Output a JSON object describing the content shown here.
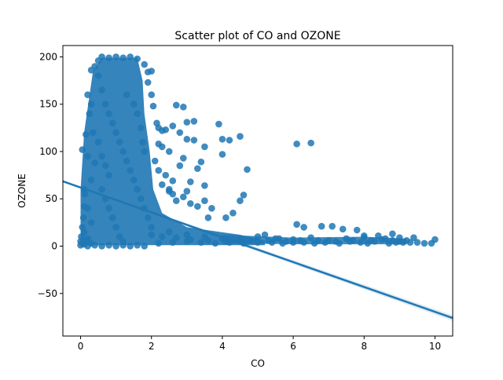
{
  "chart_data": {
    "type": "scatter",
    "title": "Scatter plot of CO and OZONE",
    "xlabel": "CO",
    "ylabel": "OZONE",
    "xlim": [
      -0.5,
      10.5
    ],
    "ylim": [
      -95,
      212
    ],
    "xticks": [
      0,
      2,
      4,
      6,
      8,
      10
    ],
    "yticks": [
      -50,
      0,
      50,
      100,
      150,
      200
    ],
    "grid": false,
    "legend": "none",
    "marker_color": "#1f77b4",
    "series": [
      {
        "points": [
          [
            0.2,
            160
          ],
          [
            0.15,
            118
          ],
          [
            0.05,
            102
          ],
          [
            0.3,
            186
          ],
          [
            0.4,
            190
          ],
          [
            0.5,
            196
          ],
          [
            0.6,
            200
          ],
          [
            0.8,
            199
          ],
          [
            1.0,
            200
          ],
          [
            1.2,
            199
          ],
          [
            1.4,
            200
          ],
          [
            1.6,
            198
          ],
          [
            1.8,
            192
          ],
          [
            1.9,
            184
          ],
          [
            2.0,
            185
          ],
          [
            1.9,
            173
          ],
          [
            0.3,
            150
          ],
          [
            0.25,
            140
          ],
          [
            0.35,
            120
          ],
          [
            0.2,
            95
          ],
          [
            0.4,
            88
          ],
          [
            0.3,
            70
          ],
          [
            0.1,
            60
          ],
          [
            0.2,
            40
          ],
          [
            0.3,
            25
          ],
          [
            0.1,
            15
          ],
          [
            0.2,
            8
          ],
          [
            0.3,
            3
          ],
          [
            0.5,
            180
          ],
          [
            0.6,
            165
          ],
          [
            0.7,
            150
          ],
          [
            0.8,
            140
          ],
          [
            0.9,
            130
          ],
          [
            1.0,
            120
          ],
          [
            1.1,
            110
          ],
          [
            1.2,
            100
          ],
          [
            1.3,
            90
          ],
          [
            1.4,
            80
          ],
          [
            1.5,
            70
          ],
          [
            0.6,
            60
          ],
          [
            0.7,
            50
          ],
          [
            0.8,
            40
          ],
          [
            0.9,
            30
          ],
          [
            1.0,
            20
          ],
          [
            1.1,
            10
          ],
          [
            1.2,
            5
          ],
          [
            0.5,
            110
          ],
          [
            0.6,
            95
          ],
          [
            0.7,
            85
          ],
          [
            0.8,
            75
          ],
          [
            1.3,
            160
          ],
          [
            1.5,
            150
          ],
          [
            1.6,
            140
          ],
          [
            1.7,
            125
          ],
          [
            1.75,
            110
          ],
          [
            1.8,
            100
          ],
          [
            1.6,
            60
          ],
          [
            1.7,
            50
          ],
          [
            1.8,
            40
          ],
          [
            1.9,
            30
          ],
          [
            2.0,
            160
          ],
          [
            2.05,
            148
          ],
          [
            2.15,
            130
          ],
          [
            2.2,
            125
          ],
          [
            2.3,
            122
          ],
          [
            2.4,
            123
          ],
          [
            2.2,
            108
          ],
          [
            2.3,
            105
          ],
          [
            2.5,
            100
          ],
          [
            2.1,
            90
          ],
          [
            2.2,
            80
          ],
          [
            2.4,
            75
          ],
          [
            2.3,
            65
          ],
          [
            2.5,
            60
          ],
          [
            2.6,
            55
          ],
          [
            2.7,
            48
          ],
          [
            2.9,
            52
          ],
          [
            3.1,
            45
          ],
          [
            3.3,
            42
          ],
          [
            3.5,
            48
          ],
          [
            3.7,
            40
          ],
          [
            3.6,
            30
          ],
          [
            2.7,
            149
          ],
          [
            2.9,
            147
          ],
          [
            3.0,
            131
          ],
          [
            3.2,
            132
          ],
          [
            2.8,
            120
          ],
          [
            2.6,
            127
          ],
          [
            3.0,
            113
          ],
          [
            3.2,
            112
          ],
          [
            3.5,
            105
          ],
          [
            2.9,
            93
          ],
          [
            3.4,
            89
          ],
          [
            3.3,
            82
          ],
          [
            2.8,
            85
          ],
          [
            2.6,
            69
          ],
          [
            3.1,
            68
          ],
          [
            3.5,
            64
          ],
          [
            3.0,
            58
          ],
          [
            2.5,
            58
          ],
          [
            3.9,
            129
          ],
          [
            4.0,
            113
          ],
          [
            4.2,
            112
          ],
          [
            4.5,
            116
          ],
          [
            4.0,
            97
          ],
          [
            4.7,
            81
          ],
          [
            4.5,
            48
          ],
          [
            4.6,
            54
          ],
          [
            4.3,
            35
          ],
          [
            4.1,
            30
          ],
          [
            2.0,
            20
          ],
          [
            2.5,
            15
          ],
          [
            3.0,
            12
          ],
          [
            3.5,
            10
          ],
          [
            4.0,
            8
          ],
          [
            4.5,
            6
          ],
          [
            5.0,
            10
          ],
          [
            5.5,
            8
          ],
          [
            6.0,
            7
          ],
          [
            6.5,
            9
          ],
          [
            7.0,
            6
          ],
          [
            7.5,
            8
          ],
          [
            8.0,
            9
          ],
          [
            8.5,
            7
          ],
          [
            9.0,
            5
          ],
          [
            9.5,
            4
          ],
          [
            5.2,
            12
          ],
          [
            5.6,
            8
          ],
          [
            6.1,
            23
          ],
          [
            6.3,
            20
          ],
          [
            6.1,
            108
          ],
          [
            6.5,
            109
          ],
          [
            6.8,
            21
          ],
          [
            7.1,
            21
          ],
          [
            7.4,
            18
          ],
          [
            7.8,
            17
          ],
          [
            8.0,
            11
          ],
          [
            8.2,
            6
          ],
          [
            8.4,
            11
          ],
          [
            8.6,
            8
          ],
          [
            8.8,
            13
          ],
          [
            9.0,
            9
          ],
          [
            9.2,
            6
          ],
          [
            9.4,
            9
          ],
          [
            9.7,
            3
          ],
          [
            9.9,
            3
          ],
          [
            10.0,
            7
          ],
          [
            9.1,
            4
          ],
          [
            8.9,
            4
          ],
          [
            8.7,
            3
          ],
          [
            8.1,
            3
          ],
          [
            7.9,
            4
          ],
          [
            7.6,
            5
          ],
          [
            7.3,
            3
          ],
          [
            6.9,
            4
          ],
          [
            6.6,
            3
          ],
          [
            6.3,
            4
          ],
          [
            6.0,
            4
          ],
          [
            5.7,
            3
          ],
          [
            5.4,
            4
          ],
          [
            2.2,
            3
          ],
          [
            2.6,
            4
          ],
          [
            3.0,
            5
          ],
          [
            3.4,
            4
          ],
          [
            3.8,
            3
          ],
          [
            4.2,
            4
          ],
          [
            4.6,
            3
          ],
          [
            5.0,
            4
          ],
          [
            2.0,
            12
          ],
          [
            2.3,
            10
          ],
          [
            2.7,
            9
          ],
          [
            3.1,
            7
          ],
          [
            3.6,
            6
          ],
          [
            4.1,
            5
          ],
          [
            4.8,
            6
          ],
          [
            5.3,
            6
          ],
          [
            5.8,
            5
          ],
          [
            6.2,
            6
          ],
          [
            6.7,
            6
          ],
          [
            7.2,
            5
          ],
          [
            7.7,
            6
          ],
          [
            8.3,
            5
          ],
          [
            8.8,
            6
          ],
          [
            9.3,
            4
          ],
          [
            0.0,
            5
          ],
          [
            0.02,
            10
          ],
          [
            0.05,
            20
          ],
          [
            0.08,
            30
          ],
          [
            0.1,
            42
          ],
          [
            0.12,
            55
          ],
          [
            0.0,
            1
          ],
          [
            0.05,
            3
          ],
          [
            0.1,
            2
          ],
          [
            0.15,
            5
          ],
          [
            0.2,
            0
          ],
          [
            0.4,
            1
          ],
          [
            0.6,
            0
          ],
          [
            0.8,
            1
          ],
          [
            1.0,
            0
          ],
          [
            1.2,
            1
          ],
          [
            1.4,
            0
          ],
          [
            1.6,
            1
          ],
          [
            1.8,
            0
          ]
        ]
      }
    ],
    "regression": {
      "x": [
        -0.5,
        10.5
      ],
      "y": [
        68.5,
        -76
      ],
      "color": "#1f77b4"
    }
  }
}
